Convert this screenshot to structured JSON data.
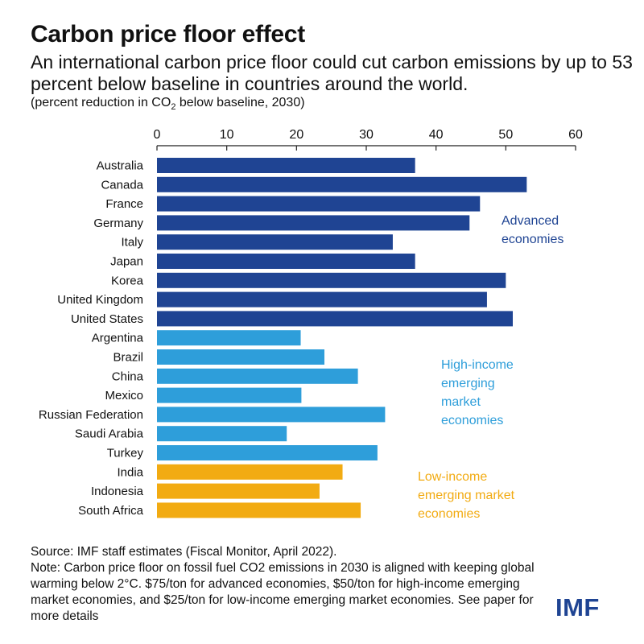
{
  "title": "Carbon price floor effect",
  "subtitle": "An international carbon price floor could cut carbon emissions by up to 53 percent below baseline in countries around the world.",
  "units": {
    "before": "(percent reduction in CO",
    "sub": "2",
    "after": " below baseline, 2030)"
  },
  "colors": {
    "advanced": "#1F4493",
    "high_income": "#2E9EDA",
    "low_income": "#F2AB12"
  },
  "chart_data": {
    "type": "bar",
    "orientation": "horizontal",
    "title": "Carbon price floor effect",
    "xlabel": "percent reduction in CO2 below baseline, 2030",
    "xlim": [
      0,
      60
    ],
    "xticks": [
      "0",
      "10",
      "20",
      "30",
      "40",
      "50",
      "60"
    ],
    "grid": false,
    "categories": [
      "Australia",
      "Canada",
      "France",
      "Germany",
      "Italy",
      "Japan",
      "Korea",
      "United Kingdom",
      "United States",
      "Argentina",
      "Brazil",
      "China",
      "Mexico",
      "Russian Federation",
      "Saudi Arabia",
      "Turkey",
      "India",
      "Indonesia",
      "South Africa"
    ],
    "values": [
      37,
      53,
      46.3,
      44.8,
      33.8,
      37,
      50,
      47.3,
      51,
      20.6,
      24,
      28.8,
      20.7,
      32.7,
      18.6,
      31.6,
      26.6,
      23.3,
      29.2
    ],
    "groups": [
      "advanced",
      "advanced",
      "advanced",
      "advanced",
      "advanced",
      "advanced",
      "advanced",
      "advanced",
      "advanced",
      "high_income",
      "high_income",
      "high_income",
      "high_income",
      "high_income",
      "high_income",
      "high_income",
      "low_income",
      "low_income",
      "low_income"
    ],
    "group_labels": {
      "advanced": [
        "Advanced",
        "economies"
      ],
      "high_income": [
        "High-income",
        "emerging",
        "market",
        "economies"
      ],
      "low_income": [
        "Low-income",
        "emerging market",
        "economies"
      ]
    }
  },
  "source": "Source: IMF staff estimates (Fiscal Monitor, April 2022).",
  "note": "Note: Carbon price floor on fossil fuel CO2 emissions in 2030 is aligned with keeping global warming below 2°C. $75/ton for advanced economies, $50/ton for high-income emerging market economies, and $25/ton for low-income emerging market economies. See paper for more details",
  "logo": "IMF"
}
